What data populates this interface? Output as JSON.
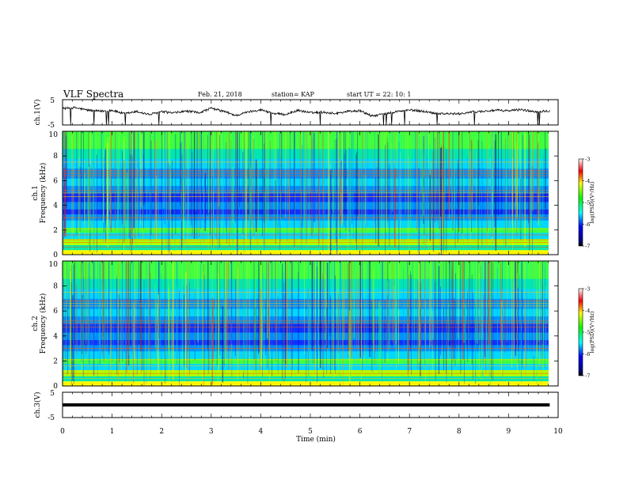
{
  "header": {
    "title": "VLF Spectra",
    "date": "Feb. 21, 2018",
    "station": "station= KAP",
    "start_ut": "start  UT  =   22: 10: 1"
  },
  "chart_data": [
    {
      "type": "line",
      "panel": "ch1-waveform",
      "ylabel": "ch.1(V)",
      "ylim": [
        -5,
        5
      ],
      "yticks": [
        "5",
        "-5"
      ],
      "xlim": [
        0,
        10
      ],
      "color": "#000000",
      "series": [
        {
          "x": [
            0,
            0.25,
            0.5,
            0.75,
            1,
            1.25,
            1.5,
            1.75,
            2,
            2.25,
            2.5,
            2.75,
            3,
            3.25,
            3.5,
            3.75,
            4,
            4.25,
            4.5,
            4.75,
            5,
            5.25,
            5.5,
            5.75,
            6,
            6.25,
            6.5,
            6.75,
            7,
            7.25,
            7.5,
            7.75,
            8,
            8.25,
            8.5,
            8.75,
            9,
            9.25,
            9.5,
            9.83
          ],
          "values": [
            1.5,
            1.8,
            0.9,
            0.4,
            0.8,
            -0.6,
            0.3,
            -0.9,
            0.2,
            -0.3,
            0.5,
            -0.2,
            1.6,
            0.4,
            -1.3,
            0.2,
            1.0,
            -0.4,
            -0.9,
            0.8,
            -0.2,
            0.1,
            -0.5,
            0.4,
            0.6,
            -1.5,
            -0.6,
            0.3,
            0.9,
            0.5,
            -0.3,
            -0.6,
            -0.6,
            0.1,
            0.4,
            0.8,
            0.6,
            1.1,
            0.3,
            0.6
          ]
        }
      ]
    },
    {
      "type": "heatmap",
      "panel": "ch1-spectrogram",
      "ylabel": "Frequency  (kHz)",
      "channel_label": "ch.1",
      "ylim": [
        0,
        10
      ],
      "yticks": [
        "0",
        "2",
        "4",
        "6",
        "8",
        "10"
      ],
      "xlim": [
        0,
        10
      ],
      "colorbar": {
        "label": "log(PSD)(V²/Hz)",
        "range": [
          -7,
          -3
        ],
        "ticks": [
          "-3",
          "-4",
          "-5",
          "-6",
          "-7"
        ]
      }
    },
    {
      "type": "heatmap",
      "panel": "ch2-spectrogram",
      "ylabel": "Frequency  (kHz)",
      "channel_label": "ch.2",
      "ylim": [
        0,
        10
      ],
      "yticks": [
        "0",
        "2",
        "4",
        "6",
        "8",
        "10"
      ],
      "xlim": [
        0,
        10
      ],
      "colorbar": {
        "label": "log(PSD)(V²/Hz)",
        "range": [
          -7,
          -3
        ],
        "ticks": [
          "-3",
          "-4",
          "-5",
          "-6",
          "-7"
        ]
      }
    },
    {
      "type": "line",
      "panel": "ch3-waveform",
      "ylabel": "ch.3(V)",
      "ylim": [
        -5,
        5
      ],
      "yticks": [
        "5",
        "-5"
      ],
      "xlim": [
        0,
        10
      ],
      "color": "#000000",
      "series": [
        {
          "x": [
            0,
            9.83
          ],
          "values": [
            0,
            0
          ]
        }
      ]
    }
  ],
  "xaxis": {
    "label": "Time  (min)",
    "ticks": [
      "0",
      "1",
      "2",
      "3",
      "4",
      "5",
      "6",
      "7",
      "8",
      "9",
      "10"
    ]
  }
}
